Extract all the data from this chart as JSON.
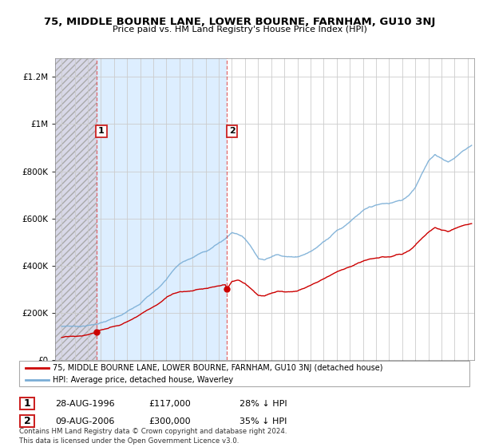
{
  "title": "75, MIDDLE BOURNE LANE, LOWER BOURNE, FARNHAM, GU10 3NJ",
  "subtitle": "Price paid vs. HM Land Registry's House Price Index (HPI)",
  "legend_line1": "75, MIDDLE BOURNE LANE, LOWER BOURNE, FARNHAM, GU10 3NJ (detached house)",
  "legend_line2": "HPI: Average price, detached house, Waverley",
  "annotation1_label": "1",
  "annotation1_date": "28-AUG-1996",
  "annotation1_price": "£117,000",
  "annotation1_hpi": "28% ↓ HPI",
  "annotation2_label": "2",
  "annotation2_date": "09-AUG-2006",
  "annotation2_price": "£300,000",
  "annotation2_hpi": "35% ↓ HPI",
  "footer": "Contains HM Land Registry data © Crown copyright and database right 2024.\nThis data is licensed under the Open Government Licence v3.0.",
  "sale1_year": 1996.65,
  "sale1_price": 117000,
  "sale2_year": 2006.62,
  "sale2_price": 300000,
  "line_color_red": "#cc0000",
  "line_color_blue": "#7aaed6",
  "hatch_color": "#d8d8e8",
  "blue_fill_color": "#ddeeff",
  "grid_color": "#cccccc",
  "dashed_line_color": "#dd4444",
  "sale_marker_color": "#cc0000",
  "ylim_max": 1280000,
  "xmin": 1993.5,
  "xmax": 2025.5,
  "background_color": "#ffffff"
}
